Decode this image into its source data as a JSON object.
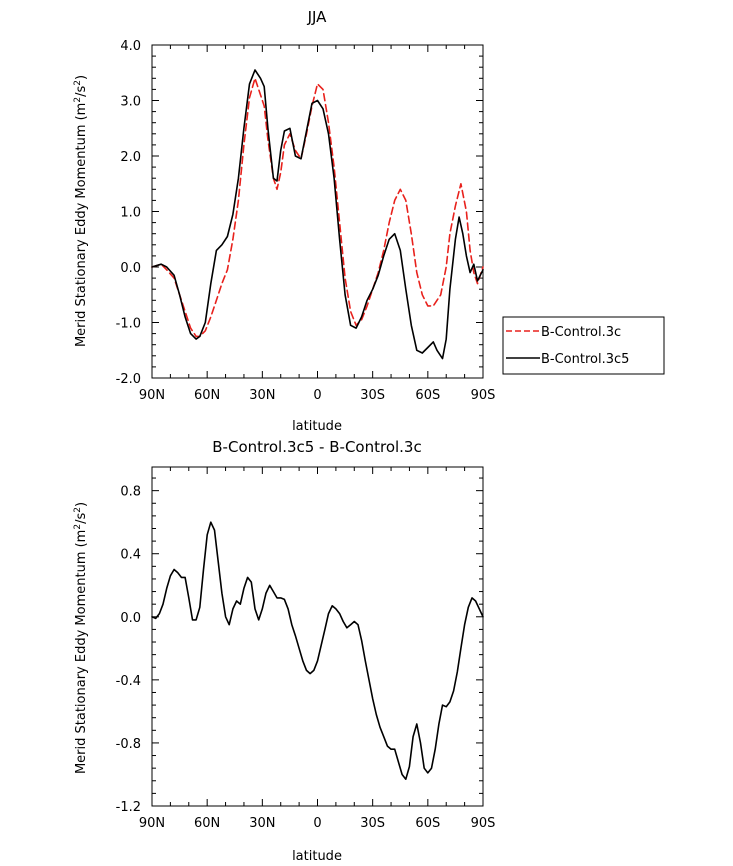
{
  "chart_data": [
    {
      "type": "line",
      "title": "JJA",
      "xlabel": "latitude",
      "ylabel": "Merid Stationary Eddy Momentum (m",
      "ylabel_sup": "2",
      "ylabel_mid": "/s",
      "ylabel_sup2": "2",
      "ylabel_end": ")",
      "xlim": [
        90,
        -90
      ],
      "ylim": [
        -2.0,
        4.0
      ],
      "xticks": [
        90,
        60,
        30,
        0,
        -30,
        -60,
        -90
      ],
      "xtick_labels": [
        "90N",
        "60N",
        "30N",
        "0",
        "30S",
        "60S",
        "90S"
      ],
      "yticks": [
        -2.0,
        -1.0,
        0.0,
        1.0,
        2.0,
        3.0,
        4.0
      ],
      "ytick_labels": [
        "-2.0",
        "-1.0",
        "0.0",
        "1.0",
        "2.0",
        "3.0",
        "4.0"
      ],
      "legend_position": "right",
      "grid": false,
      "series": [
        {
          "name": "B-Control.3c",
          "color": "#e8211c",
          "dash": "dashed",
          "x": [
            90,
            85,
            82,
            78,
            75,
            72,
            69,
            66,
            64,
            61,
            58,
            55,
            52,
            49,
            46,
            43,
            40,
            37,
            34,
            31,
            29,
            27,
            24,
            22,
            20,
            18,
            15,
            12,
            9,
            6,
            3,
            0,
            -3,
            -6,
            -9,
            -12,
            -15,
            -18,
            -21,
            -24,
            -27,
            -30,
            -33,
            -36,
            -39,
            -42,
            -45,
            -48,
            -51,
            -54,
            -57,
            -60,
            -63,
            -65,
            -67,
            -70,
            -72,
            -75,
            -78,
            -81,
            -83,
            -85,
            -87,
            -90
          ],
          "y": [
            0.0,
            0.05,
            -0.05,
            -0.2,
            -0.5,
            -0.8,
            -1.1,
            -1.25,
            -1.25,
            -1.15,
            -0.9,
            -0.6,
            -0.3,
            -0.05,
            0.5,
            1.2,
            2.2,
            3.05,
            3.4,
            3.1,
            2.9,
            2.3,
            1.6,
            1.4,
            1.7,
            2.2,
            2.4,
            2.1,
            1.95,
            2.4,
            2.9,
            3.3,
            3.2,
            2.6,
            1.8,
            0.8,
            -0.2,
            -0.8,
            -1.05,
            -0.95,
            -0.7,
            -0.4,
            -0.1,
            0.3,
            0.8,
            1.2,
            1.4,
            1.2,
            0.6,
            -0.1,
            -0.5,
            -0.7,
            -0.7,
            -0.6,
            -0.5,
            0.0,
            0.6,
            1.1,
            1.5,
            1.0,
            0.3,
            -0.1,
            -0.3,
            0.0
          ]
        },
        {
          "name": "B-Control.3c5",
          "color": "#000000",
          "dash": "solid",
          "x": [
            90,
            87,
            85,
            82,
            78,
            75,
            72,
            69,
            66,
            64,
            61,
            58,
            55,
            52,
            49,
            46,
            43,
            40,
            37,
            34,
            31,
            29,
            27,
            24,
            22,
            20,
            18,
            15,
            12,
            9,
            6,
            3,
            0,
            -3,
            -6,
            -9,
            -12,
            -15,
            -18,
            -21,
            -24,
            -27,
            -30,
            -33,
            -36,
            -39,
            -42,
            -45,
            -48,
            -51,
            -54,
            -57,
            -60,
            -63,
            -65,
            -68,
            -70,
            -72,
            -75,
            -77,
            -79,
            -81,
            -83,
            -85,
            -87,
            -90
          ],
          "y": [
            0.0,
            0.03,
            0.05,
            0.0,
            -0.15,
            -0.5,
            -0.9,
            -1.2,
            -1.3,
            -1.25,
            -1.0,
            -0.3,
            0.3,
            0.4,
            0.55,
            0.95,
            1.6,
            2.5,
            3.3,
            3.55,
            3.4,
            3.25,
            2.5,
            1.6,
            1.55,
            2.1,
            2.45,
            2.5,
            2.0,
            1.95,
            2.45,
            2.95,
            3.0,
            2.85,
            2.4,
            1.6,
            0.5,
            -0.5,
            -1.05,
            -1.1,
            -0.9,
            -0.6,
            -0.4,
            -0.15,
            0.2,
            0.5,
            0.6,
            0.3,
            -0.4,
            -1.05,
            -1.5,
            -1.55,
            -1.45,
            -1.35,
            -1.5,
            -1.65,
            -1.3,
            -0.4,
            0.5,
            0.9,
            0.6,
            0.2,
            -0.1,
            0.05,
            -0.25,
            -0.05
          ]
        }
      ]
    },
    {
      "type": "line",
      "title": "B-Control.3c5 - B-Control.3c",
      "xlabel": "latitude",
      "ylabel": "Merid Stationary Eddy Momentum (m",
      "ylabel_sup": "2",
      "ylabel_mid": "/s",
      "ylabel_sup2": "2",
      "ylabel_end": ")",
      "xlim": [
        90,
        -90
      ],
      "ylim": [
        -1.2,
        0.95
      ],
      "xticks": [
        90,
        60,
        30,
        0,
        -30,
        -60,
        -90
      ],
      "xtick_labels": [
        "90N",
        "60N",
        "30N",
        "0",
        "30S",
        "60S",
        "90S"
      ],
      "yticks": [
        -1.2,
        -0.8,
        -0.4,
        0.0,
        0.4,
        0.8
      ],
      "ytick_labels": [
        "-1.2",
        "-0.8",
        "-0.4",
        "0.0",
        "0.4",
        "0.8"
      ],
      "grid": false,
      "series": [
        {
          "color": "#000000",
          "dash": "solid",
          "x": [
            90,
            88,
            86,
            84,
            82,
            80,
            78,
            76,
            74,
            72,
            70,
            68,
            66,
            64,
            62,
            60,
            58,
            56,
            54,
            52,
            50,
            48,
            46,
            44,
            42,
            40,
            38,
            36,
            34,
            32,
            30,
            28,
            26,
            24,
            22,
            20,
            18,
            16,
            14,
            12,
            10,
            8,
            6,
            4,
            2,
            0,
            -2,
            -4,
            -6,
            -8,
            -10,
            -12,
            -14,
            -16,
            -18,
            -20,
            -22,
            -24,
            -26,
            -28,
            -30,
            -32,
            -34,
            -36,
            -38,
            -40,
            -42,
            -44,
            -46,
            -48,
            -50,
            -52,
            -54,
            -56,
            -58,
            -60,
            -62,
            -64,
            -66,
            -68,
            -70,
            -72,
            -74,
            -76,
            -78,
            -80,
            -82,
            -84,
            -86,
            -88,
            -90
          ],
          "y": [
            0.0,
            -0.01,
            0.02,
            0.08,
            0.18,
            0.26,
            0.3,
            0.28,
            0.25,
            0.25,
            0.12,
            -0.02,
            -0.02,
            0.06,
            0.3,
            0.52,
            0.6,
            0.55,
            0.35,
            0.15,
            0.0,
            -0.05,
            0.05,
            0.1,
            0.08,
            0.18,
            0.25,
            0.22,
            0.05,
            -0.02,
            0.05,
            0.15,
            0.2,
            0.16,
            0.12,
            0.12,
            0.11,
            0.05,
            -0.05,
            -0.12,
            -0.2,
            -0.28,
            -0.34,
            -0.36,
            -0.34,
            -0.28,
            -0.18,
            -0.08,
            0.02,
            0.07,
            0.05,
            0.02,
            -0.03,
            -0.07,
            -0.05,
            -0.03,
            -0.05,
            -0.15,
            -0.28,
            -0.4,
            -0.52,
            -0.62,
            -0.7,
            -0.76,
            -0.82,
            -0.84,
            -0.84,
            -0.92,
            -1.0,
            -1.03,
            -0.95,
            -0.76,
            -0.68,
            -0.8,
            -0.96,
            -0.99,
            -0.96,
            -0.84,
            -0.68,
            -0.56,
            -0.57,
            -0.54,
            -0.47,
            -0.35,
            -0.2,
            -0.05,
            0.06,
            0.12,
            0.1,
            0.05,
            0.0
          ]
        }
      ]
    }
  ],
  "legend": {
    "items": [
      {
        "label": "B-Control.3c",
        "color": "#e8211c",
        "dash": "dashed"
      },
      {
        "label": "B-Control.3c5",
        "color": "#000000",
        "dash": "solid"
      }
    ]
  }
}
